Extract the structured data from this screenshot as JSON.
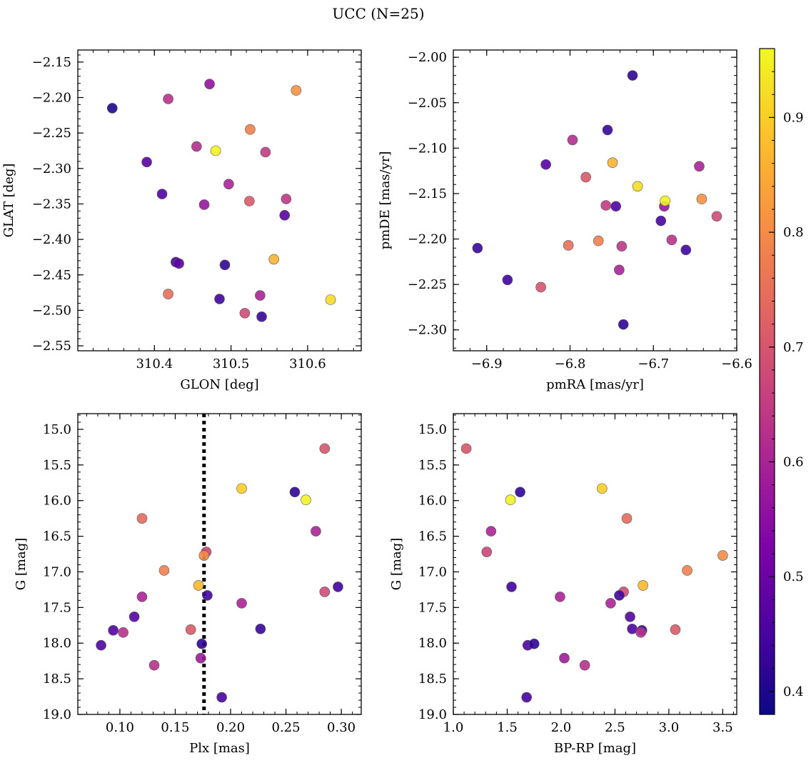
{
  "title": "UCC (N=25)",
  "colorbar": {
    "range": [
      0.38,
      0.96
    ],
    "ticks": [
      0.4,
      0.5,
      0.6,
      0.7,
      0.8,
      0.9
    ],
    "tick_labels": [
      "0.4",
      "0.5",
      "0.6",
      "0.7",
      "0.8",
      "0.9"
    ],
    "colormap": "plasma"
  },
  "chart_data": [
    {
      "type": "scatter",
      "xlabel": "GLON [deg]",
      "ylabel": "GLAT [deg]",
      "xlim": [
        310.3,
        310.67
      ],
      "ylim": [
        -2.557,
        -2.133
      ],
      "x_ticks": [
        310.4,
        310.5,
        310.6
      ],
      "x_tick_labels": [
        "310.4",
        "310.5",
        "310.6"
      ],
      "y_ticks": [
        -2.55,
        -2.5,
        -2.45,
        -2.4,
        -2.35,
        -2.3,
        -2.25,
        -2.2,
        -2.15
      ],
      "y_tick_labels": [
        "−2.55",
        "−2.50",
        "−2.45",
        "−2.40",
        "−2.35",
        "−2.30",
        "−2.25",
        "−2.20",
        "−2.15"
      ],
      "x": [
        310.345,
        310.472,
        310.418,
        310.585,
        310.525,
        310.455,
        310.48,
        310.545,
        310.39,
        310.497,
        310.41,
        310.465,
        310.524,
        310.572,
        310.57,
        310.428,
        310.432,
        310.492,
        310.556,
        310.418,
        310.63,
        310.485,
        310.538,
        310.518,
        310.54
      ],
      "y": [
        -2.215,
        -2.181,
        -2.202,
        -2.19,
        -2.245,
        -2.269,
        -2.275,
        -2.277,
        -2.291,
        -2.322,
        -2.336,
        -2.351,
        -2.346,
        -2.343,
        -2.366,
        -2.432,
        -2.434,
        -2.436,
        -2.428,
        -2.477,
        -2.485,
        -2.484,
        -2.479,
        -2.504,
        -2.509
      ],
      "c": [
        0.4,
        0.56,
        0.63,
        0.81,
        0.78,
        0.62,
        0.95,
        0.65,
        0.47,
        0.6,
        0.46,
        0.57,
        0.71,
        0.64,
        0.47,
        0.45,
        0.48,
        0.42,
        0.86,
        0.75,
        0.92,
        0.44,
        0.6,
        0.68,
        0.43
      ]
    },
    {
      "type": "scatter",
      "xlabel": "pmRA [mas/yr]",
      "ylabel": "pmDE [mas/yr]",
      "xlim": [
        -6.94,
        -6.6
      ],
      "ylim": [
        -2.323,
        -1.992
      ],
      "x_ticks": [
        -6.9,
        -6.8,
        -6.7,
        -6.6
      ],
      "x_tick_labels": [
        "−6.9",
        "−6.8",
        "−6.7",
        "−6.6"
      ],
      "y_ticks": [
        -2.3,
        -2.25,
        -2.2,
        -2.15,
        -2.1,
        -2.05,
        -2.0
      ],
      "y_tick_labels": [
        "−2.30",
        "−2.25",
        "−2.20",
        "−2.15",
        "−2.10",
        "−2.05",
        "−2.00"
      ],
      "x": [
        -6.725,
        -6.755,
        -6.797,
        -6.829,
        -6.749,
        -6.645,
        -6.781,
        -6.719,
        -6.757,
        -6.745,
        -6.687,
        -6.642,
        -6.624,
        -6.691,
        -6.678,
        -6.661,
        -6.911,
        -6.802,
        -6.766,
        -6.738,
        -6.741,
        -6.875,
        -6.835,
        -6.736,
        -6.686
      ],
      "y": [
        -2.02,
        -2.08,
        -2.091,
        -2.118,
        -2.116,
        -2.12,
        -2.132,
        -2.142,
        -2.163,
        -2.164,
        -2.164,
        -2.156,
        -2.175,
        -2.18,
        -2.201,
        -2.212,
        -2.21,
        -2.207,
        -2.202,
        -2.208,
        -2.234,
        -2.245,
        -2.253,
        -2.294,
        -2.158
      ],
      "c": [
        0.42,
        0.43,
        0.62,
        0.47,
        0.86,
        0.6,
        0.71,
        0.92,
        0.65,
        0.46,
        0.57,
        0.81,
        0.68,
        0.45,
        0.63,
        0.44,
        0.43,
        0.75,
        0.78,
        0.64,
        0.6,
        0.44,
        0.7,
        0.42,
        0.95
      ]
    },
    {
      "type": "scatter",
      "xlabel": "Plx [mas]",
      "ylabel": "G [mag]",
      "xlim": [
        0.062,
        0.318
      ],
      "ylim": [
        19.0,
        14.78
      ],
      "x_ticks": [
        0.1,
        0.15,
        0.2,
        0.25,
        0.3
      ],
      "x_tick_labels": [
        "0.10",
        "0.15",
        "0.20",
        "0.25",
        "0.30"
      ],
      "y_ticks": [
        15.0,
        15.5,
        16.0,
        16.5,
        17.0,
        17.5,
        18.0,
        18.5,
        19.0
      ],
      "y_tick_labels": [
        "15.0",
        "15.5",
        "16.0",
        "16.5",
        "17.0",
        "17.5",
        "18.0",
        "18.5",
        "19.0"
      ],
      "vline": 0.176,
      "x": [
        0.285,
        0.21,
        0.258,
        0.268,
        0.12,
        0.277,
        0.178,
        0.176,
        0.14,
        0.171,
        0.297,
        0.285,
        0.179,
        0.12,
        0.21,
        0.113,
        0.094,
        0.103,
        0.164,
        0.227,
        0.083,
        0.174,
        0.173,
        0.131,
        0.192
      ],
      "y": [
        15.27,
        15.83,
        15.88,
        15.99,
        16.25,
        16.43,
        16.72,
        16.77,
        16.98,
        17.19,
        17.21,
        17.28,
        17.33,
        17.35,
        17.44,
        17.63,
        17.82,
        17.85,
        17.81,
        17.8,
        18.03,
        18.01,
        18.21,
        18.31,
        18.76
      ],
      "c": [
        0.7,
        0.9,
        0.42,
        0.95,
        0.74,
        0.6,
        0.67,
        0.8,
        0.78,
        0.87,
        0.44,
        0.68,
        0.44,
        0.6,
        0.6,
        0.47,
        0.46,
        0.63,
        0.71,
        0.43,
        0.46,
        0.42,
        0.58,
        0.63,
        0.45
      ]
    },
    {
      "type": "scatter",
      "xlabel": "BP-RP [mag]",
      "ylabel": "G [mag]",
      "xlim": [
        1.0,
        3.63
      ],
      "ylim": [
        19.0,
        14.78
      ],
      "x_ticks": [
        1.0,
        1.5,
        2.0,
        2.5,
        3.0,
        3.5
      ],
      "x_tick_labels": [
        "1.0",
        "1.5",
        "2.0",
        "2.5",
        "3.0",
        "3.5"
      ],
      "y_ticks": [
        15.0,
        15.5,
        16.0,
        16.5,
        17.0,
        17.5,
        18.0,
        18.5,
        19.0
      ],
      "y_tick_labels": [
        "15.0",
        "15.5",
        "16.0",
        "16.5",
        "17.0",
        "17.5",
        "18.0",
        "18.5",
        "19.0"
      ],
      "x": [
        1.12,
        2.38,
        1.62,
        1.53,
        2.61,
        1.35,
        1.31,
        3.5,
        3.17,
        2.76,
        1.54,
        2.58,
        2.54,
        1.99,
        2.46,
        2.64,
        2.66,
        2.75,
        2.74,
        3.06,
        1.69,
        1.75,
        2.03,
        2.22,
        1.68
      ],
      "y": [
        15.27,
        15.83,
        15.88,
        15.99,
        16.25,
        16.43,
        16.72,
        16.77,
        16.98,
        17.19,
        17.21,
        17.28,
        17.33,
        17.35,
        17.44,
        17.63,
        17.8,
        17.82,
        17.85,
        17.81,
        18.03,
        18.01,
        18.21,
        18.31,
        18.76
      ],
      "c": [
        0.7,
        0.9,
        0.42,
        0.95,
        0.74,
        0.6,
        0.67,
        0.8,
        0.78,
        0.87,
        0.44,
        0.68,
        0.44,
        0.6,
        0.6,
        0.47,
        0.46,
        0.44,
        0.63,
        0.71,
        0.46,
        0.42,
        0.58,
        0.63,
        0.45
      ]
    }
  ]
}
